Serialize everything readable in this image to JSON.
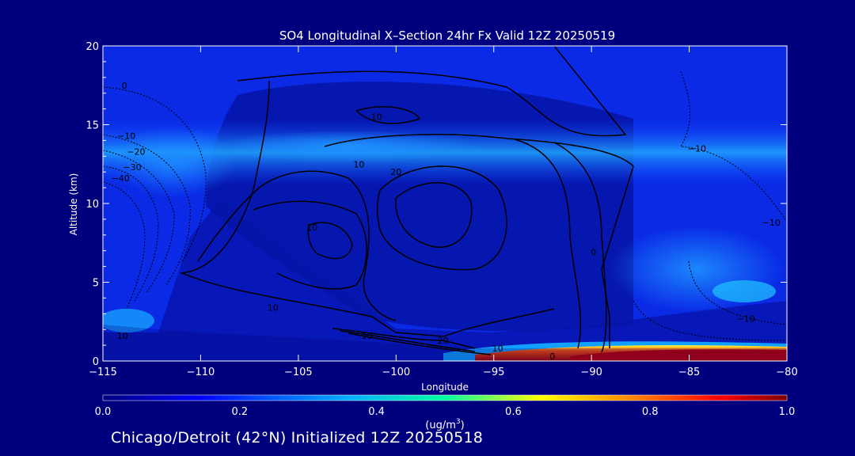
{
  "chart_data": {
    "type": "heatmap",
    "title": "SO4 Longitudinal X–Section 24hr  Fx Valid 12Z 20250519",
    "xlabel": "Longitude",
    "ylabel": "Altitude (km)",
    "xlim": [
      -115,
      -80
    ],
    "ylim": [
      0,
      20
    ],
    "x_ticks": [
      -115,
      -110,
      -105,
      -100,
      -95,
      -90,
      -85,
      -80
    ],
    "x_tick_labels": [
      "−115",
      "−110",
      "−105",
      "−100",
      "−95",
      "−90",
      "−85",
      "−80"
    ],
    "y_ticks": [
      0,
      5,
      10,
      15,
      20
    ],
    "y_tick_labels": [
      "0",
      "5",
      "10",
      "15",
      "20"
    ],
    "colorbar": {
      "min": 0.0,
      "max": 1.0,
      "ticks": [
        "0.0",
        "0.2",
        "0.4",
        "0.6",
        "0.8",
        "1.0"
      ],
      "units_label": "(ug/m",
      "units_sup": "3",
      "units_close": ")",
      "colormap": [
        "#00007f",
        "#0000ff",
        "#00b0ff",
        "#00ffa0",
        "#ffff00",
        "#ff8000",
        "#ff0000",
        "#7f0000"
      ]
    },
    "contour_labels": [
      {
        "text": "0",
        "lon": -113.9,
        "alt": 17.5
      },
      {
        "text": "−10",
        "lon": -113.8,
        "alt": 14.3
      },
      {
        "text": "−20",
        "lon": -113.3,
        "alt": 13.3
      },
      {
        "text": "−30",
        "lon": -113.5,
        "alt": 12.3
      },
      {
        "text": "−40",
        "lon": -114.1,
        "alt": 11.6
      },
      {
        "text": "10",
        "lon": -101.0,
        "alt": 15.5
      },
      {
        "text": "10",
        "lon": -101.9,
        "alt": 12.5
      },
      {
        "text": "20",
        "lon": -100.0,
        "alt": 12.0
      },
      {
        "text": "−10",
        "lon": -84.6,
        "alt": 13.5
      },
      {
        "text": "−10",
        "lon": -80.8,
        "alt": 8.8
      },
      {
        "text": "−10",
        "lon": -82.1,
        "alt": 2.7
      },
      {
        "text": "10",
        "lon": -106.3,
        "alt": 3.4
      },
      {
        "text": "10",
        "lon": -114.0,
        "alt": 1.6
      },
      {
        "text": "10",
        "lon": -101.5,
        "alt": 1.6
      },
      {
        "text": "20",
        "lon": -97.6,
        "alt": 1.3
      },
      {
        "text": "10",
        "lon": -94.8,
        "alt": 0.8
      },
      {
        "text": "0",
        "lon": -92.0,
        "alt": 0.3
      },
      {
        "text": "0",
        "lon": -89.9,
        "alt": 6.9
      },
      {
        "text": "10",
        "lon": -104.3,
        "alt": 8.5
      }
    ]
  },
  "footer": {
    "text": "Chicago/Detroit (42°N) Initialized 12Z 20250518"
  }
}
